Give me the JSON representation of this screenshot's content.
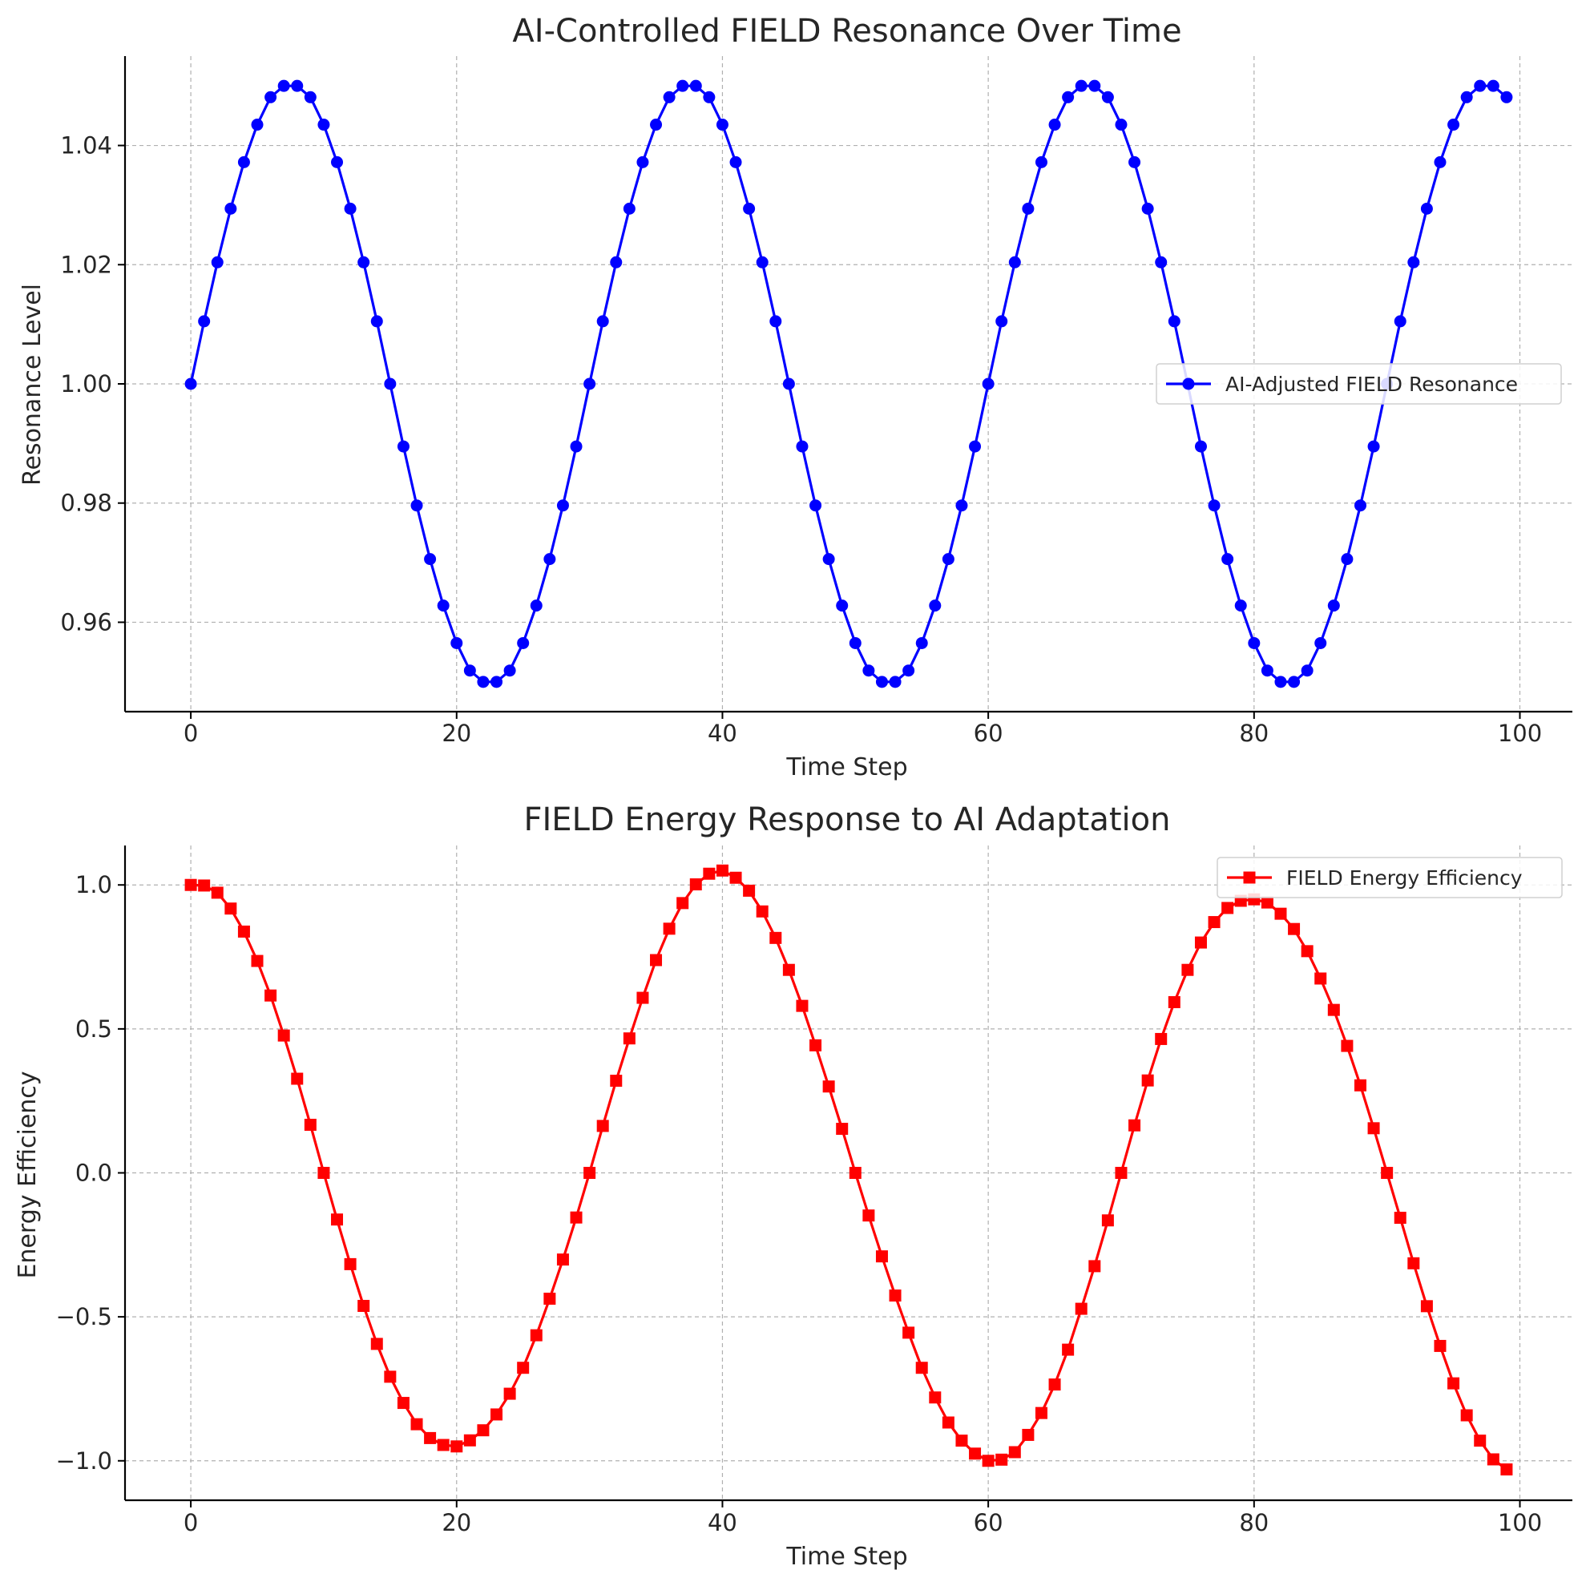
{
  "chart_data": [
    {
      "type": "line",
      "title": "AI-Controlled FIELD Resonance Over Time",
      "xlabel": "Time Step",
      "ylabel": "Resonance Level",
      "xlim": [
        -4.95,
        103.95
      ],
      "ylim": [
        0.945,
        1.055
      ],
      "xticks": [
        0,
        20,
        40,
        60,
        80,
        100
      ],
      "xtick_labels": [
        "0",
        "20",
        "40",
        "60",
        "80",
        "100"
      ],
      "yticks": [
        0.96,
        0.98,
        1.0,
        1.02,
        1.04
      ],
      "ytick_labels": [
        "0.96",
        "0.98",
        "1.00",
        "1.02",
        "1.04"
      ],
      "grid": true,
      "legend_position": "center-right",
      "series": [
        {
          "name": "AI-Adjusted FIELD Resonance",
          "color": "#0000ff",
          "marker": "circle",
          "x": [
            0,
            1,
            2,
            3,
            4,
            5,
            6,
            7,
            8,
            9,
            10,
            11,
            12,
            13,
            14,
            15,
            16,
            17,
            18,
            19,
            20,
            21,
            22,
            23,
            24,
            25,
            26,
            27,
            28,
            29,
            30,
            31,
            32,
            33,
            34,
            35,
            36,
            37,
            38,
            39,
            40,
            41,
            42,
            43,
            44,
            45,
            46,
            47,
            48,
            49,
            50,
            51,
            52,
            53,
            54,
            55,
            56,
            57,
            58,
            59,
            60,
            61,
            62,
            63,
            64,
            65,
            66,
            67,
            68,
            69,
            70,
            71,
            72,
            73,
            74,
            75,
            76,
            77,
            78,
            79,
            80,
            81,
            82,
            83,
            84,
            85,
            86,
            87,
            88,
            89,
            90,
            91,
            92,
            93,
            94,
            95,
            96,
            97,
            98,
            99
          ],
          "values": [
            1.0,
            1.0105,
            1.0204,
            1.0294,
            1.0372,
            1.0435,
            1.0481,
            1.05,
            1.05,
            1.0481,
            1.0435,
            1.0372,
            1.0294,
            1.0204,
            1.0105,
            1.0,
            0.9895,
            0.9796,
            0.9706,
            0.9628,
            0.9565,
            0.9519,
            0.95,
            0.95,
            0.9519,
            0.9565,
            0.9628,
            0.9706,
            0.9796,
            0.9895,
            1.0,
            1.0105,
            1.0204,
            1.0294,
            1.0372,
            1.0435,
            1.0481,
            1.05,
            1.05,
            1.0481,
            1.0435,
            1.0372,
            1.0294,
            1.0204,
            1.0105,
            1.0,
            0.9895,
            0.9796,
            0.9706,
            0.9628,
            0.9565,
            0.9519,
            0.95,
            0.95,
            0.9519,
            0.9565,
            0.9628,
            0.9706,
            0.9796,
            0.9895,
            1.0,
            1.0105,
            1.0204,
            1.0294,
            1.0372,
            1.0435,
            1.0481,
            1.05,
            1.05,
            1.0481,
            1.0435,
            1.0372,
            1.0294,
            1.0204,
            1.0105,
            1.0,
            0.9895,
            0.9796,
            0.9706,
            0.9628,
            0.9565,
            0.9519,
            0.95,
            0.95,
            0.9519,
            0.9565,
            0.9628,
            0.9706,
            0.9796,
            0.9895,
            1.0,
            1.0105,
            1.0204,
            1.0294,
            1.0372,
            1.0435,
            1.0481,
            1.05,
            1.05,
            1.0481
          ]
        }
      ]
    },
    {
      "type": "line",
      "title": "FIELD Energy Response to AI Adaptation",
      "xlabel": "Time Step",
      "ylabel": "Energy Efficiency",
      "xlim": [
        -4.95,
        103.95
      ],
      "ylim": [
        -1.137,
        1.137
      ],
      "xticks": [
        0,
        20,
        40,
        60,
        80,
        100
      ],
      "xtick_labels": [
        "0",
        "20",
        "40",
        "60",
        "80",
        "100"
      ],
      "yticks": [
        -1.0,
        -0.5,
        0.0,
        0.5,
        1.0
      ],
      "ytick_labels": [
        "−1.0",
        "−0.5",
        "0.0",
        "0.5",
        "1.0"
      ],
      "grid": true,
      "legend_position": "upper-right",
      "series": [
        {
          "name": "FIELD Energy Efficiency",
          "color": "#ff0000",
          "marker": "square",
          "x": [
            0,
            1,
            2,
            3,
            4,
            5,
            6,
            7,
            8,
            9,
            10,
            11,
            12,
            13,
            14,
            15,
            16,
            17,
            18,
            19,
            20,
            21,
            22,
            23,
            24,
            25,
            26,
            27,
            28,
            29,
            30,
            31,
            32,
            33,
            34,
            35,
            36,
            37,
            38,
            39,
            40,
            41,
            42,
            43,
            44,
            45,
            46,
            47,
            48,
            49,
            50,
            51,
            52,
            53,
            54,
            55,
            56,
            57,
            58,
            59,
            60,
            61,
            62,
            63,
            64,
            65,
            66,
            67,
            68,
            69,
            70,
            71,
            72,
            73,
            74,
            75,
            76,
            77,
            78,
            79,
            80,
            81,
            82,
            83,
            84,
            85,
            86,
            87,
            88,
            89,
            90,
            91,
            92,
            93,
            94,
            95,
            96,
            97,
            98,
            99
          ],
          "values": [
            1.0,
            0.998,
            0.973,
            0.918,
            0.838,
            0.736,
            0.616,
            0.477,
            0.327,
            0.167,
            0.0,
            -0.162,
            -0.317,
            -0.462,
            -0.594,
            -0.708,
            -0.799,
            -0.873,
            -0.921,
            -0.945,
            -0.95,
            -0.929,
            -0.894,
            -0.839,
            -0.767,
            -0.677,
            -0.564,
            -0.437,
            -0.301,
            -0.155,
            0.0,
            0.163,
            0.32,
            0.467,
            0.608,
            0.739,
            0.848,
            0.937,
            1.002,
            1.039,
            1.05,
            1.025,
            0.98,
            0.908,
            0.816,
            0.705,
            0.58,
            0.443,
            0.3,
            0.153,
            0.0,
            -0.148,
            -0.29,
            -0.426,
            -0.555,
            -0.677,
            -0.78,
            -0.867,
            -0.93,
            -0.975,
            -1.0,
            -0.996,
            -0.97,
            -0.91,
            -0.834,
            -0.735,
            -0.614,
            -0.472,
            -0.324,
            -0.165,
            0.0,
            0.165,
            0.321,
            0.465,
            0.593,
            0.705,
            0.8,
            0.871,
            0.92,
            0.945,
            0.95,
            0.939,
            0.9,
            0.847,
            0.77,
            0.675,
            0.566,
            0.441,
            0.304,
            0.155,
            0.0,
            -0.156,
            -0.314,
            -0.463,
            -0.601,
            -0.731,
            -0.842,
            -0.93,
            -0.995,
            -1.03
          ]
        }
      ]
    }
  ]
}
